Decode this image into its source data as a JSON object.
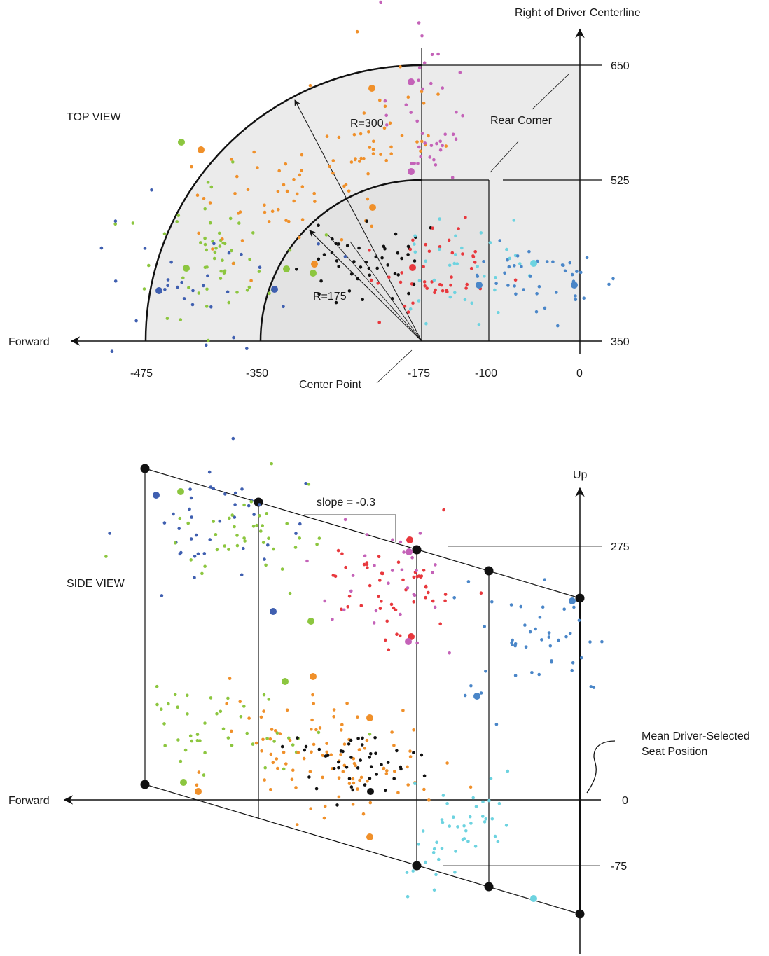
{
  "top_view": {
    "title": "TOP VIEW",
    "y_axis_label": "Right of Driver Centerline",
    "x_axis_label": "Forward",
    "x_ticks": [
      "-475",
      "-350",
      "-175",
      "-100",
      "0"
    ],
    "y_ticks": [
      "650",
      "525",
      "350"
    ],
    "radius_outer_label": "R=300",
    "radius_inner_label": "R=175",
    "annotation_rear_corner": "Rear Corner",
    "annotation_center_point": "Center Point"
  },
  "side_view": {
    "title": "SIDE VIEW",
    "y_axis_label": "Up",
    "x_axis_label": "Forward",
    "y_ticks": [
      "275",
      "0",
      "-75"
    ],
    "slope_label": "slope = -0.3",
    "annotation_mean_seat": "Mean Driver-Selected Seat Position"
  },
  "colors": {
    "blue": "#3f5fb0",
    "light_blue": "#4a86c8",
    "cyan": "#6dd3e0",
    "green": "#8cc63f",
    "orange": "#f0902a",
    "red": "#e8383d",
    "magenta": "#c462b8",
    "black": "#111111",
    "region_fill": "#e9e9e9"
  }
}
